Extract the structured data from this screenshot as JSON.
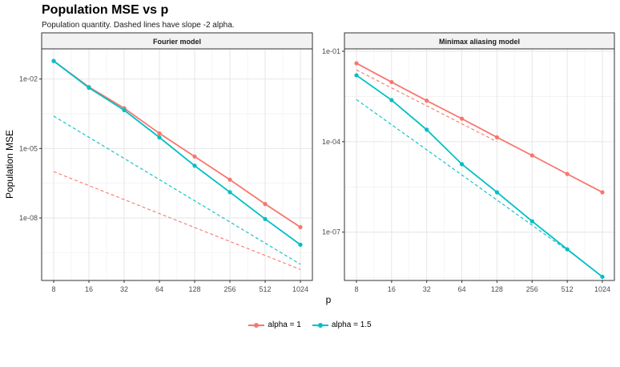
{
  "title": "Population MSE vs p",
  "subtitle": "Population quantity. Dashed lines have slope -2 alpha.",
  "xlabel": "p",
  "ylabel": "Population MSE",
  "colors": {
    "alpha1": "#F8766D",
    "alpha15": "#00BFC4"
  },
  "legend": [
    {
      "label": "alpha = 1",
      "color": "#F8766D"
    },
    {
      "label": "alpha = 1.5",
      "color": "#00BFC4"
    }
  ],
  "chart_data": [
    {
      "type": "line",
      "facet": "Fourier model",
      "x": [
        8,
        16,
        32,
        64,
        128,
        256,
        512,
        1024
      ],
      "xscale": "log2",
      "yscale": "log10",
      "ylim": [
        2e-11,
        0.2
      ],
      "ytick_labels": [
        "1e-02",
        "1e-05",
        "1e-08"
      ],
      "ytick_values": [
        0.01,
        1e-05,
        1e-08
      ],
      "series": [
        {
          "name": "alpha = 1",
          "values": [
            0.06,
            0.0045,
            0.00055,
            4.5e-05,
            4.5e-06,
            4.5e-07,
            4e-08,
            4e-09
          ]
        },
        {
          "name": "alpha = 1.5",
          "values": [
            0.06,
            0.0042,
            0.00045,
            3e-05,
            1.8e-06,
            1.3e-07,
            9e-09,
            7e-10
          ]
        }
      ],
      "reference_lines": [
        {
          "name": "alpha = 1",
          "style": "dashed",
          "slope": -2,
          "x": [
            8,
            1024
          ],
          "values": [
            1e-06,
            6e-11
          ]
        },
        {
          "name": "alpha = 1.5",
          "style": "dashed",
          "slope": -3,
          "x": [
            8,
            1024
          ],
          "values": [
            0.00025,
            1e-10
          ]
        }
      ]
    },
    {
      "type": "line",
      "facet": "Minimax aliasing model",
      "x": [
        8,
        16,
        32,
        64,
        128,
        256,
        512,
        1024
      ],
      "xscale": "log2",
      "yscale": "log10",
      "ylim": [
        2.5e-09,
        0.12
      ],
      "ytick_labels": [
        "1e-01",
        "1e-04",
        "1e-07"
      ],
      "ytick_values": [
        0.1,
        0.0001,
        1e-07
      ],
      "series": [
        {
          "name": "alpha = 1",
          "values": [
            0.04,
            0.0095,
            0.0023,
            0.00058,
            0.00014,
            3.5e-05,
            8.5e-06,
            2.1e-06
          ]
        },
        {
          "name": "alpha = 1.5",
          "values": [
            0.016,
            0.0024,
            0.00025,
            1.8e-05,
            2.1e-06,
            2.3e-07,
            2.7e-08,
            3.3e-09
          ]
        }
      ],
      "reference_lines": [
        {
          "name": "alpha = 1",
          "style": "dashed",
          "slope": -2,
          "x": [
            8,
            128
          ],
          "values": [
            0.024,
            0.0001
          ]
        },
        {
          "name": "alpha = 1.5",
          "style": "dashed",
          "slope": -3,
          "x": [
            8,
            512
          ],
          "values": [
            0.0025,
            2.5e-08
          ]
        }
      ]
    }
  ]
}
